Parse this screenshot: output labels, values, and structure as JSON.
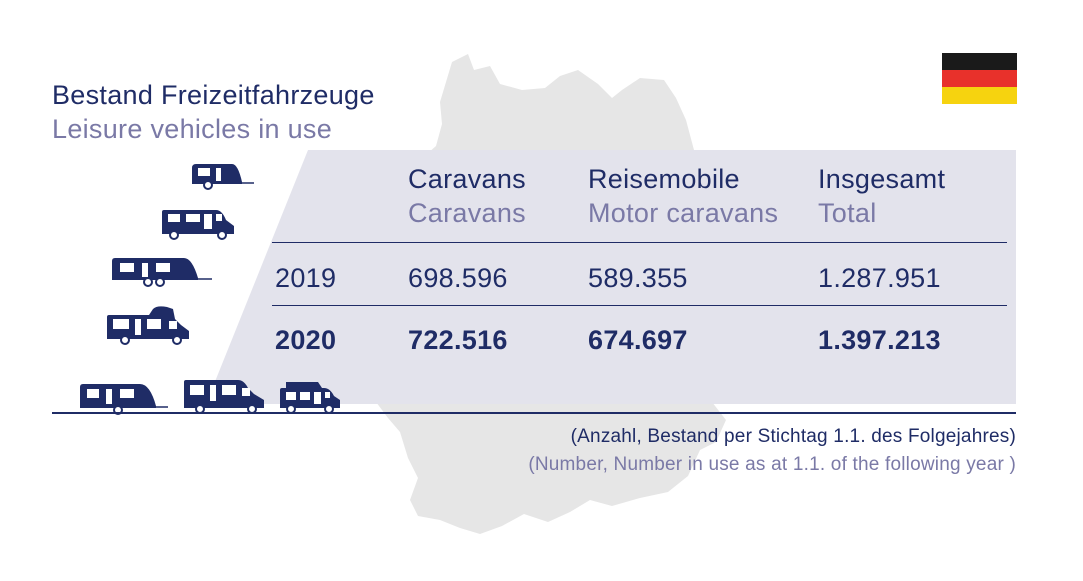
{
  "title": {
    "de": "Bestand Freizeitfahrzeuge",
    "en": "Leisure vehicles in use"
  },
  "footnote": {
    "de": "(Anzahl, Bestand per Stichtag 1.1. des Folgejahres)",
    "en": "(Number, Number in use as at 1.1. of the following year )"
  },
  "chart_data": {
    "type": "table",
    "columns": [
      {
        "de": "Caravans",
        "en": "Caravans"
      },
      {
        "de": "Reisemobile",
        "en": "Motor caravans"
      },
      {
        "de": "Insgesamt",
        "en": "Total"
      }
    ],
    "rows": [
      {
        "year": "2019",
        "values": [
          "698.596",
          "589.355",
          "1.287.951"
        ]
      },
      {
        "year": "2020",
        "values": [
          "722.516",
          "674.697",
          "1.397.213"
        ]
      }
    ]
  },
  "colors": {
    "navy": "#1f2c66",
    "lavender": "#7a79a6",
    "panel": "#e3e3ec",
    "map": "#e6e6e6",
    "flag": [
      "#1a1a1a",
      "#e8312b",
      "#f6d30f"
    ]
  },
  "icons": [
    "caravan-icon",
    "van-icon",
    "caravan-icon",
    "motorhome-icon",
    "caravan-icon",
    "motorhome-icon",
    "van-icon"
  ]
}
